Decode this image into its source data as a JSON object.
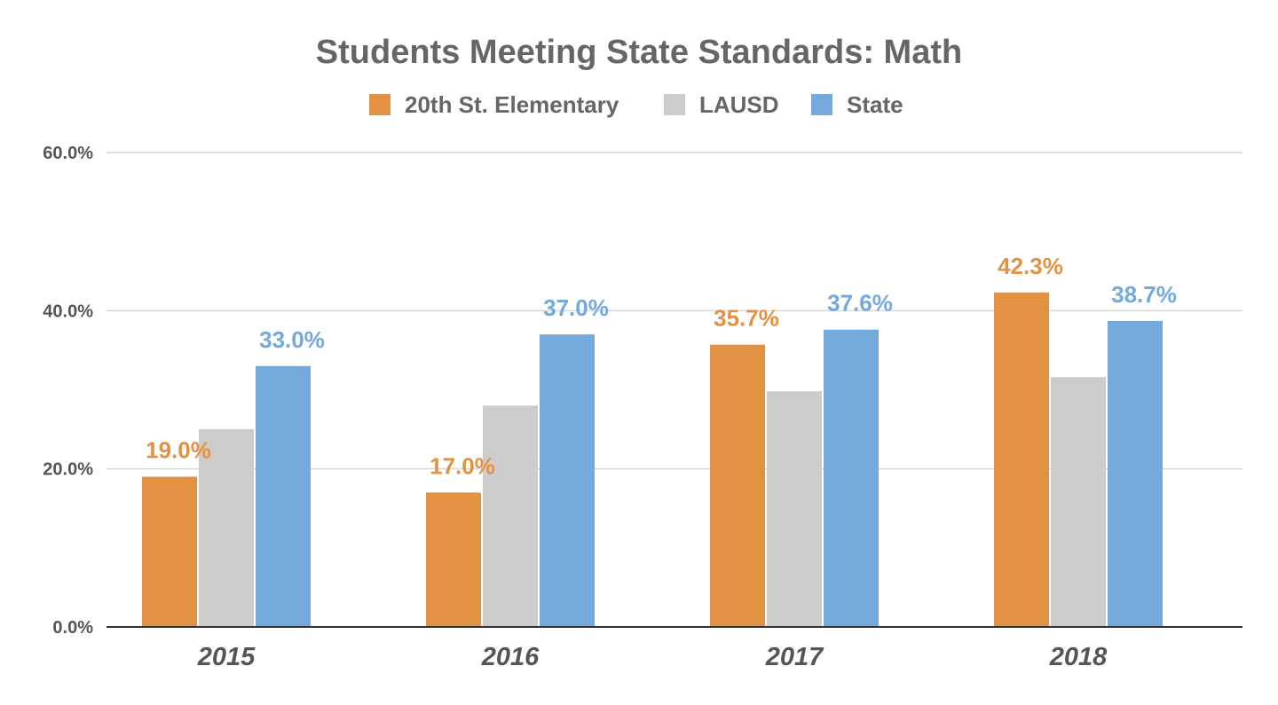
{
  "chart_data": {
    "type": "bar",
    "title": "Students Meeting State Standards: Math",
    "xlabel": "",
    "ylabel": "",
    "categories": [
      "2015",
      "2016",
      "2017",
      "2018"
    ],
    "series": [
      {
        "name": "20th St. Elementary",
        "color": "#e39142",
        "values": [
          19.0,
          17.0,
          35.7,
          42.3
        ],
        "labels": [
          "19.0%",
          "17.0%",
          "35.7%",
          "42.3%"
        ]
      },
      {
        "name": "LAUSD",
        "color": "#cccccc",
        "values": [
          25.0,
          28.0,
          29.8,
          31.6
        ],
        "labels": [
          null,
          null,
          null,
          null
        ]
      },
      {
        "name": "State",
        "color": "#73a9db",
        "values": [
          33.0,
          37.0,
          37.6,
          38.7
        ],
        "labels": [
          "33.0%",
          "37.0%",
          "37.6%",
          "38.7%"
        ]
      }
    ],
    "yticks": [
      "0.0%",
      "20.0%",
      "40.0%",
      "60.0%"
    ],
    "ytick_values": [
      0,
      20,
      40,
      60
    ],
    "ylim": [
      0,
      60
    ],
    "grid": true,
    "legend_position": "top"
  }
}
